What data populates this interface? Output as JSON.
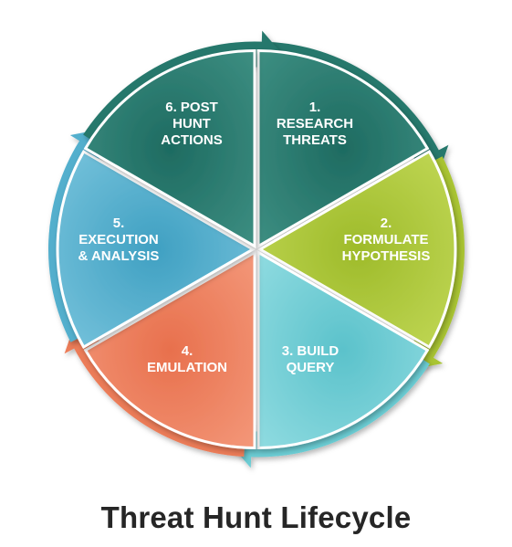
{
  "title": "Threat Hunt Lifecycle",
  "segments": [
    {
      "step": "1",
      "lines": [
        "1.",
        "RESEARCH",
        "THREATS"
      ],
      "color": "#1e6b61",
      "light": "#3f9184",
      "arrow": "#26786c"
    },
    {
      "step": "2",
      "lines": [
        "2.",
        "FORMULATE",
        "HYPOTHESIS"
      ],
      "color": "#9ebb2a",
      "light": "#c4da5a",
      "arrow": "#a9c433"
    },
    {
      "step": "3",
      "lines": [
        "3. BUILD",
        "QUERY"
      ],
      "color": "#5bc2cb",
      "light": "#93dde2",
      "arrow": "#6ccdd4"
    },
    {
      "step": "4",
      "lines": [
        "4.",
        "EMULATION"
      ],
      "color": "#e8704d",
      "light": "#f49a7c",
      "arrow": "#ec7c58"
    },
    {
      "step": "5",
      "lines": [
        "5.",
        "EXECUTION",
        "& ANALYSIS"
      ],
      "color": "#3fa0c2",
      "light": "#7cc6de",
      "arrow": "#52afcd"
    },
    {
      "step": "6",
      "lines": [
        "6. POST",
        "HUNT",
        "ACTIONS"
      ],
      "color": "#1e6b61",
      "light": "#3f9184",
      "arrow": "#26786c"
    }
  ]
}
